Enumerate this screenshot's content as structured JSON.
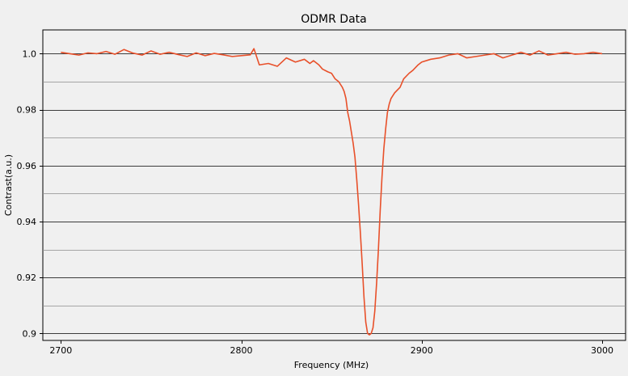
{
  "chart_data": {
    "type": "line",
    "title": "ODMR Data",
    "xlabel": "Frequency (MHz)",
    "ylabel": "Contrast(a.u.)",
    "xlim": [
      2690,
      3013
    ],
    "ylim": [
      0.8975,
      1.0085
    ],
    "x_ticks": [
      2700,
      2800,
      2900,
      3000
    ],
    "x_tick_labels": [
      "2700",
      "2800",
      "2900",
      "3000"
    ],
    "y_ticks": [
      0.9,
      0.92,
      0.94,
      0.96,
      0.98,
      1.0
    ],
    "y_tick_labels": [
      "0.9",
      "0.92",
      "0.94",
      "0.96",
      "0.98",
      "1.0"
    ],
    "grid": "horizontal",
    "series": [
      {
        "color": "#e8502a",
        "x": [
          2700,
          2705,
          2710,
          2715,
          2720,
          2725,
          2730,
          2735,
          2740,
          2745,
          2750,
          2755,
          2760,
          2765,
          2770,
          2775,
          2780,
          2785,
          2790,
          2795,
          2800,
          2805,
          2807,
          2810,
          2815,
          2820,
          2825,
          2830,
          2835,
          2838,
          2840,
          2843,
          2845,
          2848,
          2850,
          2852,
          2854,
          2856,
          2857,
          2858,
          2859,
          2860,
          2861,
          2862,
          2863,
          2864,
          2865,
          2866,
          2867,
          2868,
          2869,
          2870,
          2871,
          2872,
          2873,
          2874,
          2875,
          2876,
          2877,
          2878,
          2879,
          2880,
          2881,
          2882,
          2883,
          2885,
          2888,
          2890,
          2893,
          2895,
          2898,
          2900,
          2905,
          2910,
          2915,
          2920,
          2925,
          2930,
          2935,
          2940,
          2945,
          2950,
          2955,
          2960,
          2965,
          2970,
          2975,
          2980,
          2985,
          2990,
          2995,
          3000
        ],
        "y": [
          1.0005,
          1.0,
          0.9995,
          1.0003,
          1.0,
          1.0008,
          0.9998,
          1.0015,
          1.0002,
          0.9995,
          1.001,
          0.9998,
          1.0005,
          0.9997,
          0.999,
          1.0003,
          0.9993,
          1.0001,
          0.9996,
          0.999,
          0.9993,
          0.9996,
          1.0018,
          0.996,
          0.9965,
          0.9955,
          0.9985,
          0.997,
          0.998,
          0.9965,
          0.9975,
          0.996,
          0.9945,
          0.9935,
          0.993,
          0.991,
          0.99,
          0.988,
          0.9865,
          0.984,
          0.979,
          0.976,
          0.972,
          0.968,
          0.963,
          0.955,
          0.946,
          0.936,
          0.925,
          0.913,
          0.904,
          0.9,
          0.8995,
          0.9,
          0.902,
          0.908,
          0.918,
          0.93,
          0.944,
          0.956,
          0.966,
          0.973,
          0.979,
          0.982,
          0.984,
          0.986,
          0.988,
          0.991,
          0.993,
          0.994,
          0.996,
          0.997,
          0.998,
          0.9985,
          0.9995,
          1.0,
          0.9985,
          0.999,
          0.9995,
          1.0,
          0.9985,
          0.9995,
          1.0005,
          0.9995,
          1.001,
          0.9995,
          1.0,
          1.0005,
          0.9998,
          1.0,
          1.0005,
          1.0
        ]
      }
    ]
  }
}
